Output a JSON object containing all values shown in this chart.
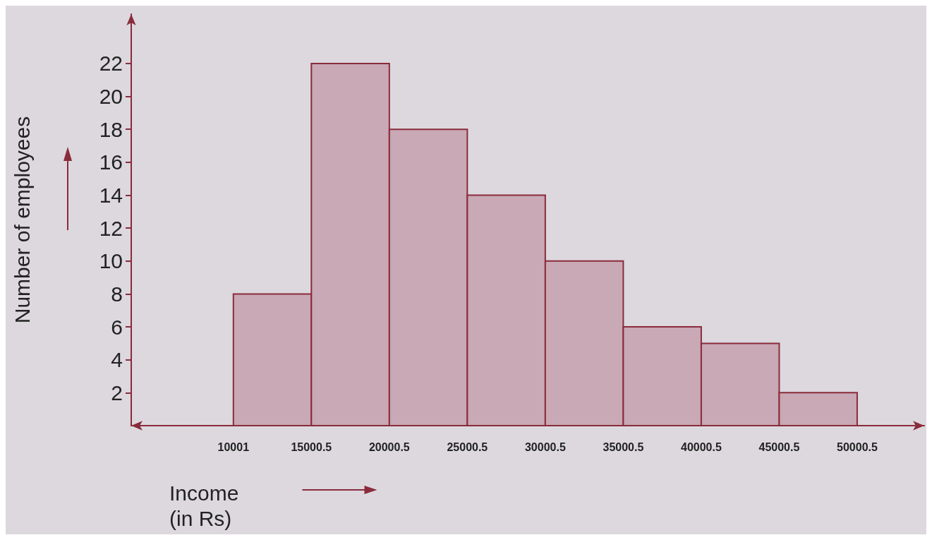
{
  "chart_data": {
    "type": "histogram",
    "xlabel": "Income (in Rs)",
    "ylabel": "Number of employees",
    "bins": [
      10001,
      15000.5,
      20000.5,
      25000.5,
      30000.5,
      35000.5,
      40000.5,
      45000.5,
      50000.5
    ],
    "values": [
      8,
      22,
      18,
      14,
      10,
      6,
      5,
      2
    ],
    "color": "#c8a9b5",
    "xlim": [
      3450,
      54300
    ],
    "xticks": [
      10001,
      15000.5,
      20000.5,
      25000.5,
      30000.5,
      35000.5,
      40000.5,
      45000.5,
      50000.5
    ],
    "ylim": [
      0,
      25
    ],
    "yticks": [
      2,
      4,
      6,
      8,
      10,
      12,
      14,
      16,
      18,
      20,
      22
    ],
    "grid": false
  }
}
